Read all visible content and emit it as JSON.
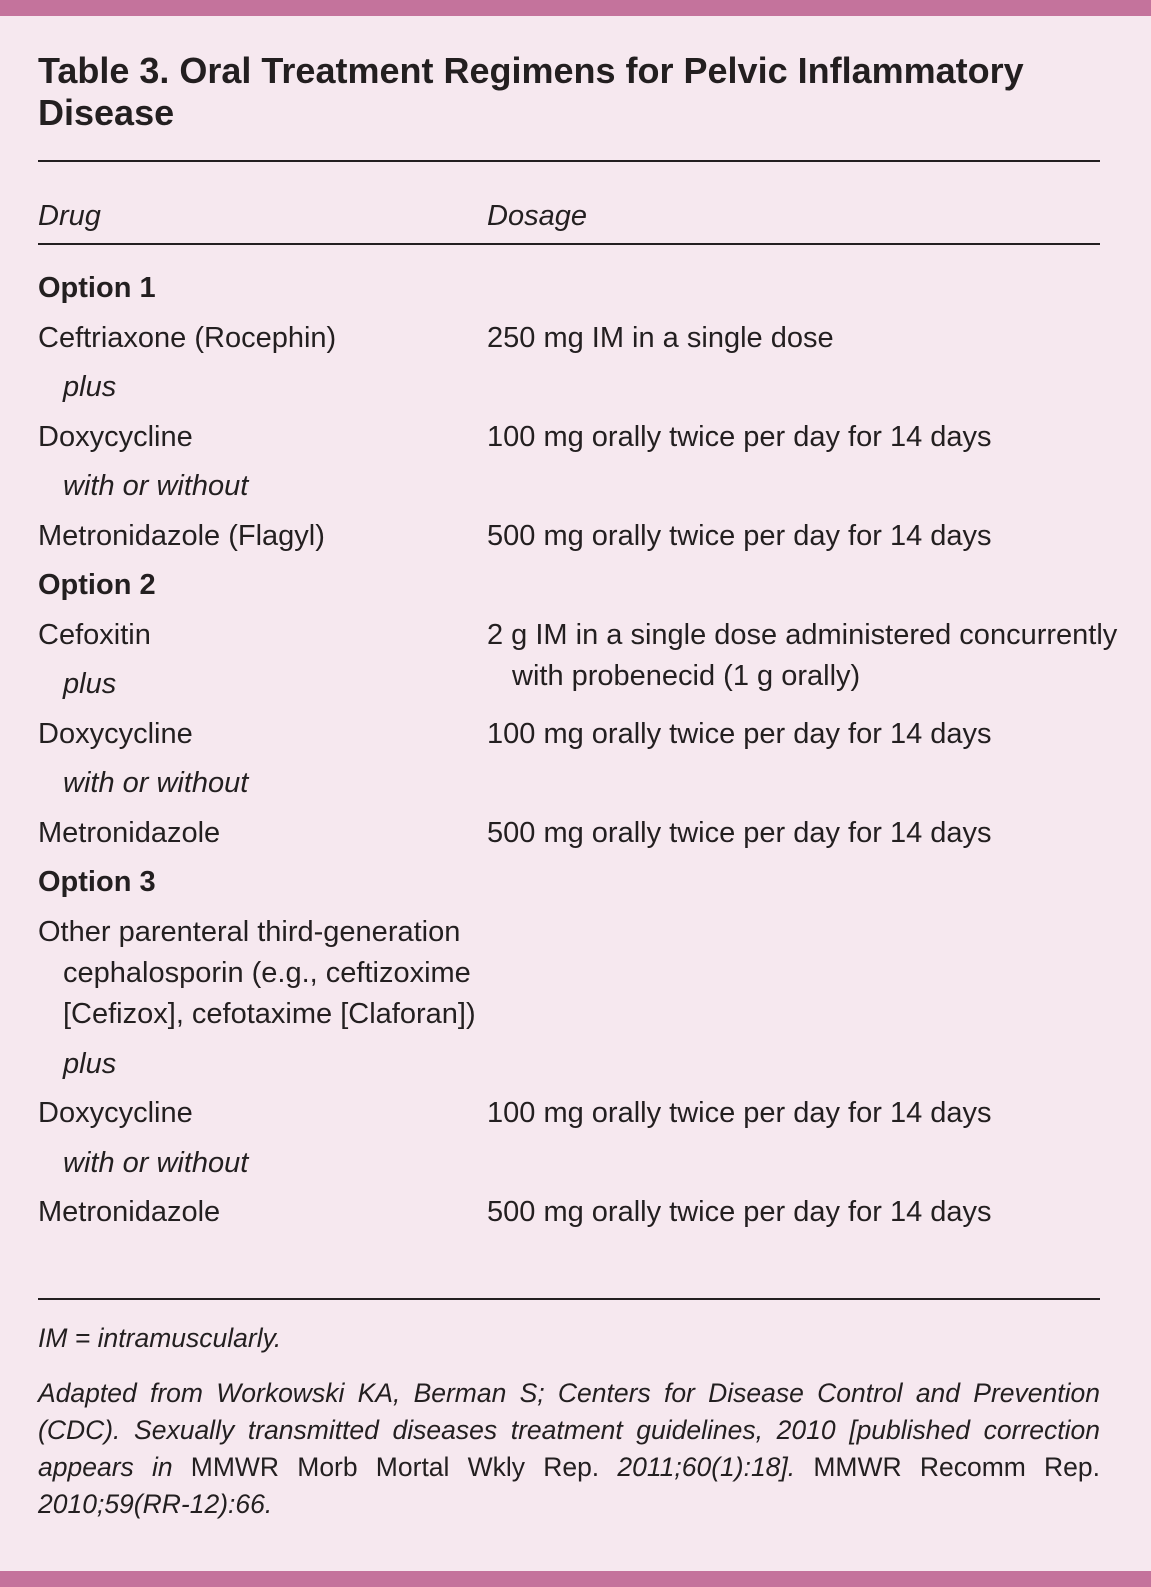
{
  "colors": {
    "accent_bar": "#c4739c",
    "background": "#f6e8ef",
    "text": "#231f20"
  },
  "title": "Table 3. Oral Treatment Regimens for Pelvic Inflammatory Disease",
  "headers": {
    "drug": "Drug",
    "dosage": "Dosage"
  },
  "rows": [
    {
      "type": "option",
      "text": "Option 1"
    },
    {
      "type": "drug",
      "drug": "Ceftriaxone (Rocephin)",
      "dosage": "250 mg IM in a single dose"
    },
    {
      "type": "connector",
      "text": "plus"
    },
    {
      "type": "drug",
      "drug": "Doxycycline",
      "dosage": "100 mg orally twice per day for 14 days"
    },
    {
      "type": "connector",
      "text": "with or without"
    },
    {
      "type": "drug",
      "drug": "Metronidazole (Flagyl)",
      "dosage": "500 mg orally twice per day for 14 days"
    },
    {
      "type": "option",
      "text": "Option 2"
    },
    {
      "type": "drug",
      "drug": "Cefoxitin",
      "dosage": "2 g IM in a single dose administered concurrently with probenecid (1 g orally)"
    },
    {
      "type": "connector",
      "text": "plus"
    },
    {
      "type": "drug",
      "drug": "Doxycycline",
      "dosage": "100 mg orally twice per day for 14 days"
    },
    {
      "type": "connector",
      "text": "with or without"
    },
    {
      "type": "drug",
      "drug": "Metronidazole",
      "dosage": "500 mg orally twice per day for 14 days"
    },
    {
      "type": "option",
      "text": "Option 3"
    },
    {
      "type": "drug",
      "tall": true,
      "drug": "Other parenteral third-generation cephalosporin (e.g., ceftizoxime [Cefizox], cefotaxime [Claforan])",
      "dosage": ""
    },
    {
      "type": "connector",
      "text": "plus"
    },
    {
      "type": "drug",
      "drug": "Doxycycline",
      "dosage": "100 mg orally twice per day for 14 days"
    },
    {
      "type": "connector",
      "text": "with or without"
    },
    {
      "type": "drug",
      "drug": "Metronidazole",
      "dosage": "500 mg orally twice per day for 14 days"
    }
  ],
  "footnote": "IM = intramuscularly.",
  "citation": {
    "p1": "Adapted from Workowski KA, Berman S; Centers for Disease Control and Prevention (CDC). Sexually transmitted diseases treatment guidelines, 2010 [published correction appears in ",
    "p2": "MMWR Morb Mortal Wkly Rep.",
    "p3": " 2011;60(1):18]. ",
    "p4": "MMWR Recomm Rep.",
    "p5": " 2010;59(RR-12):66."
  }
}
